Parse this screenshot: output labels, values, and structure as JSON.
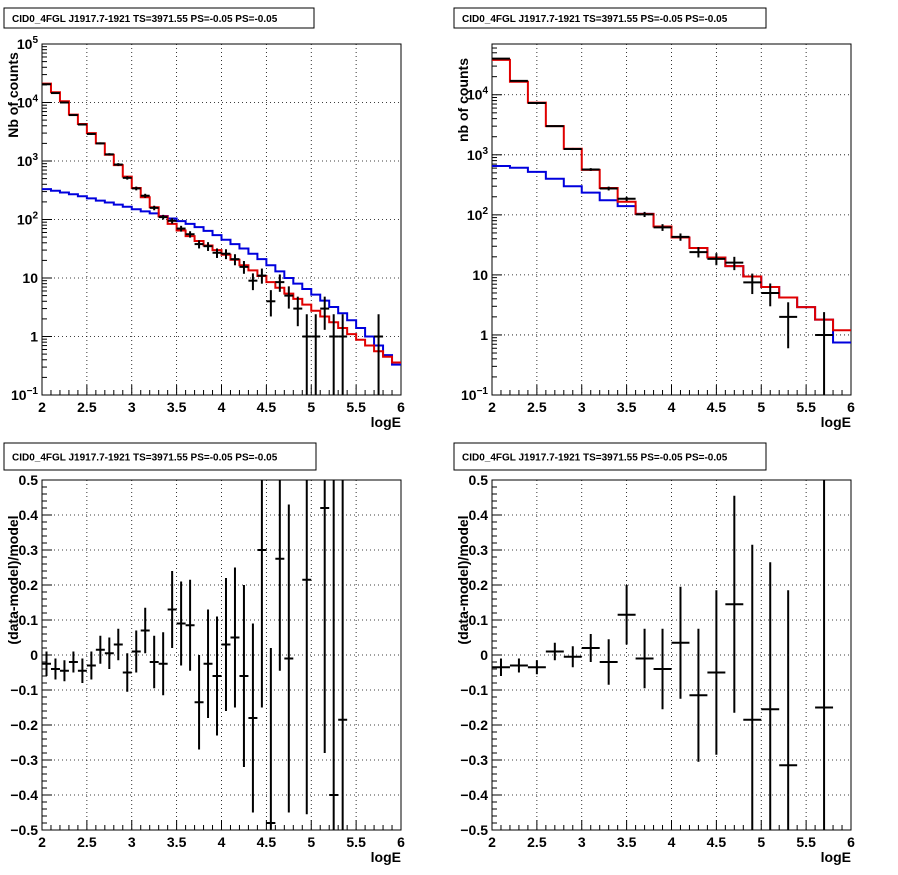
{
  "chart_data": [
    {
      "id": "top-left",
      "type": "histogram",
      "title": "CID0_4FGL J1917.7-1921 TS=3971.55 PS=-0.05 PS=-0.05",
      "xlabel": "logE",
      "ylabel": "Nb of counts",
      "x_ticks": [
        "2",
        "2.5",
        "3",
        "3.5",
        "4",
        "4.5",
        "5",
        "5.5",
        "6"
      ],
      "y_ticks": [
        {
          "value": 0.1,
          "label": "10",
          "sup": "−1"
        },
        {
          "value": 1,
          "label": "1",
          "sup": ""
        },
        {
          "value": 10,
          "label": "10",
          "sup": ""
        },
        {
          "value": 100,
          "label": "10",
          "sup": "2"
        },
        {
          "value": 1000,
          "label": "10",
          "sup": "3"
        },
        {
          "value": 10000,
          "label": "10",
          "sup": "4"
        },
        {
          "value": 100000,
          "label": "10",
          "sup": "5"
        }
      ],
      "xlim": [
        2,
        6
      ],
      "ylim": [
        0.1,
        100000
      ],
      "log_y": true,
      "grid": true,
      "colors": {
        "total_model": "#e00000",
        "source_model": "#0000dd",
        "data": "#000000"
      },
      "bin_edges": [
        2.0,
        2.1,
        2.2,
        2.3,
        2.4,
        2.5,
        2.6,
        2.7,
        2.8,
        2.9,
        3.0,
        3.1,
        3.2,
        3.3,
        3.4,
        3.5,
        3.6,
        3.7,
        3.8,
        3.9,
        4.0,
        4.1,
        4.2,
        4.3,
        4.4,
        4.5,
        4.6,
        4.7,
        4.8,
        4.9,
        5.0,
        5.1,
        5.2,
        5.3,
        5.4,
        5.5,
        5.6,
        5.7,
        5.8,
        5.9,
        6.0
      ],
      "series": [
        {
          "values": [
            21000,
            15000,
            10500,
            6200,
            4300,
            3000,
            2000,
            1280,
            850,
            540,
            345,
            240,
            162,
            113,
            84,
            65,
            52,
            43,
            36,
            30,
            25,
            20.5,
            16.5,
            13.5,
            10.8,
            8.5,
            6.8,
            5.4,
            4.4,
            3.5,
            2.75,
            2.2,
            1.75,
            1.4,
            1.1,
            0.88,
            0.7,
            0.56,
            0.45,
            0.36
          ]
        },
        {
          "values": [
            330,
            310,
            290,
            270,
            250,
            230,
            210,
            195,
            180,
            165,
            150,
            138,
            127,
            115,
            104,
            94,
            84,
            74,
            64,
            54,
            45,
            38,
            32,
            26,
            21,
            16.5,
            13,
            10,
            8,
            6.5,
            5.2,
            4.1,
            3.2,
            2.5,
            1.9,
            1.4,
            1.0,
            0.7,
            0.48,
            0.33
          ]
        }
      ],
      "data_points": [
        {
          "x": 2.05,
          "y": 20500,
          "lo": 20300,
          "hi": 20700
        },
        {
          "x": 2.15,
          "y": 14500,
          "lo": 14300,
          "hi": 14700
        },
        {
          "x": 2.25,
          "y": 10000,
          "lo": 9850,
          "hi": 10150
        },
        {
          "x": 2.35,
          "y": 6100,
          "lo": 5950,
          "hi": 6250
        },
        {
          "x": 2.45,
          "y": 4200,
          "lo": 4080,
          "hi": 4320
        },
        {
          "x": 2.55,
          "y": 2900,
          "lo": 2800,
          "hi": 3000
        },
        {
          "x": 2.65,
          "y": 2000,
          "lo": 1920,
          "hi": 2080
        },
        {
          "x": 2.75,
          "y": 1300,
          "lo": 1240,
          "hi": 1360
        },
        {
          "x": 2.85,
          "y": 870,
          "lo": 820,
          "hi": 920
        },
        {
          "x": 2.95,
          "y": 515,
          "lo": 480,
          "hi": 550
        },
        {
          "x": 3.05,
          "y": 340,
          "lo": 315,
          "hi": 365
        },
        {
          "x": 3.15,
          "y": 255,
          "lo": 235,
          "hi": 275
        },
        {
          "x": 3.25,
          "y": 158,
          "lo": 144,
          "hi": 172
        },
        {
          "x": 3.35,
          "y": 110,
          "lo": 100,
          "hi": 120
        },
        {
          "x": 3.45,
          "y": 95,
          "lo": 85,
          "hi": 105
        },
        {
          "x": 3.55,
          "y": 70,
          "lo": 62,
          "hi": 78
        },
        {
          "x": 3.65,
          "y": 56,
          "lo": 49,
          "hi": 63
        },
        {
          "x": 3.75,
          "y": 38,
          "lo": 32,
          "hi": 44
        },
        {
          "x": 3.85,
          "y": 35,
          "lo": 29,
          "hi": 41
        },
        {
          "x": 3.95,
          "y": 27,
          "lo": 22,
          "hi": 32
        },
        {
          "x": 4.05,
          "y": 26,
          "lo": 21,
          "hi": 31
        },
        {
          "x": 4.15,
          "y": 21,
          "lo": 16.5,
          "hi": 25.5
        },
        {
          "x": 4.25,
          "y": 15.5,
          "lo": 11.8,
          "hi": 19.5
        },
        {
          "x": 4.35,
          "y": 9,
          "lo": 6.2,
          "hi": 12
        },
        {
          "x": 4.45,
          "y": 11,
          "lo": 8,
          "hi": 14.5
        },
        {
          "x": 4.55,
          "y": 4,
          "lo": 2.2,
          "hi": 6.2
        },
        {
          "x": 4.65,
          "y": 8.5,
          "lo": 5.8,
          "hi": 11.5
        },
        {
          "x": 4.75,
          "y": 5,
          "lo": 3,
          "hi": 7.2
        },
        {
          "x": 4.85,
          "y": 3,
          "lo": 1.5,
          "hi": 4.8
        },
        {
          "x": 4.95,
          "y": 1,
          "lo": 0.1,
          "hi": 2.4
        },
        {
          "x": 5.05,
          "y": 1,
          "lo": 0.1,
          "hi": 2.4
        },
        {
          "x": 5.15,
          "y": 3,
          "lo": 1.3,
          "hi": 4.8
        },
        {
          "x": 5.25,
          "y": 1,
          "lo": 0.1,
          "hi": 2.4
        },
        {
          "x": 5.35,
          "y": 1,
          "lo": 0.1,
          "hi": 2.4
        },
        {
          "x": 5.75,
          "y": 1,
          "lo": 0.1,
          "hi": 2.4
        }
      ]
    },
    {
      "id": "top-right",
      "type": "histogram",
      "title": "CID0_4FGL J1917.7-1921 TS=3971.55 PS=-0.05 PS=-0.05",
      "xlabel": "logE",
      "ylabel": "nb of counts",
      "x_ticks": [
        "2",
        "2.5",
        "3",
        "3.5",
        "4",
        "4.5",
        "5",
        "5.5",
        "6"
      ],
      "y_ticks": [
        {
          "value": 0.1,
          "label": "10",
          "sup": "−1"
        },
        {
          "value": 1,
          "label": "1",
          "sup": ""
        },
        {
          "value": 10,
          "label": "10",
          "sup": ""
        },
        {
          "value": 100,
          "label": "10",
          "sup": "2"
        },
        {
          "value": 1000,
          "label": "10",
          "sup": "3"
        },
        {
          "value": 10000,
          "label": "10",
          "sup": "4"
        }
      ],
      "xlim": [
        2,
        6
      ],
      "ylim": [
        0.1,
        70000
      ],
      "log_y": true,
      "grid": true,
      "colors": {
        "total_model": "#e00000",
        "source_model": "#0000dd",
        "data": "#000000"
      },
      "bin_edges": [
        2.0,
        2.2,
        2.4,
        2.6,
        2.8,
        3.0,
        3.2,
        3.4,
        3.6,
        3.8,
        4.0,
        4.2,
        4.4,
        4.6,
        4.8,
        5.0,
        5.2,
        5.4,
        5.6,
        5.8,
        6.0
      ],
      "series": [
        {
          "values": [
            38000,
            16500,
            7400,
            3000,
            1260,
            560,
            280,
            165,
            104,
            64,
            42,
            28,
            19.5,
            14,
            9.4,
            6.3,
            4.2,
            2.9,
            1.8,
            1.2
          ]
        },
        {
          "values": [
            650,
            610,
            520,
            400,
            300,
            235,
            175,
            140,
            104,
            64,
            42,
            28,
            19.5,
            14,
            9.4,
            6.3,
            4.2,
            2.9,
            1.8,
            0.75
          ]
        }
      ],
      "data_points": [
        {
          "x": 2.1,
          "y": 40000,
          "lo": 39700,
          "hi": 40300
        },
        {
          "x": 2.3,
          "y": 17000,
          "lo": 16800,
          "hi": 17200
        },
        {
          "x": 2.5,
          "y": 7300,
          "lo": 7150,
          "hi": 7450
        },
        {
          "x": 2.7,
          "y": 3000,
          "lo": 2920,
          "hi": 3080
        },
        {
          "x": 2.9,
          "y": 1250,
          "lo": 1200,
          "hi": 1300
        },
        {
          "x": 3.1,
          "y": 570,
          "lo": 540,
          "hi": 600
        },
        {
          "x": 3.3,
          "y": 275,
          "lo": 255,
          "hi": 295
        },
        {
          "x": 3.5,
          "y": 185,
          "lo": 170,
          "hi": 200
        },
        {
          "x": 3.7,
          "y": 102,
          "lo": 92,
          "hi": 112
        },
        {
          "x": 3.9,
          "y": 62,
          "lo": 54,
          "hi": 70
        },
        {
          "x": 4.1,
          "y": 43,
          "lo": 37,
          "hi": 49
        },
        {
          "x": 4.3,
          "y": 24,
          "lo": 19.5,
          "hi": 29
        },
        {
          "x": 4.5,
          "y": 18.5,
          "lo": 14.5,
          "hi": 23
        },
        {
          "x": 4.7,
          "y": 16,
          "lo": 12,
          "hi": 20
        },
        {
          "x": 4.9,
          "y": 7.5,
          "lo": 4.8,
          "hi": 10.5
        },
        {
          "x": 5.1,
          "y": 5,
          "lo": 3,
          "hi": 7.2
        },
        {
          "x": 5.3,
          "y": 2,
          "lo": 0.6,
          "hi": 3.5
        },
        {
          "x": 5.7,
          "y": 1,
          "lo": 0.1,
          "hi": 2.4
        }
      ]
    },
    {
      "id": "bottom-left",
      "type": "scatter",
      "title": "CID0_4FGL J1917.7-1921 TS=3971.55 PS=-0.05 PS=-0.05",
      "xlabel": "logE",
      "ylabel": "(data-model)/model",
      "x_ticks": [
        "2",
        "2.5",
        "3",
        "3.5",
        "4",
        "4.5",
        "5",
        "5.5",
        "6"
      ],
      "y_ticks": [
        "−0.5",
        "−0.4",
        "−0.3",
        "−0.2",
        "−0.1",
        "0",
        "0.1",
        "0.2",
        "0.3",
        "0.4",
        "0.5"
      ],
      "xlim": [
        2,
        6
      ],
      "ylim": [
        -0.5,
        0.5
      ],
      "grid": true,
      "bin_halfwidth": 0.05,
      "points": [
        {
          "x": 2.05,
          "y": -0.025,
          "err": 0.035
        },
        {
          "x": 2.15,
          "y": -0.04,
          "err": 0.03
        },
        {
          "x": 2.25,
          "y": -0.045,
          "err": 0.03
        },
        {
          "x": 2.35,
          "y": -0.02,
          "err": 0.03
        },
        {
          "x": 2.45,
          "y": -0.045,
          "err": 0.035
        },
        {
          "x": 2.55,
          "y": -0.03,
          "err": 0.04
        },
        {
          "x": 2.65,
          "y": 0.015,
          "err": 0.04
        },
        {
          "x": 2.75,
          "y": 0.005,
          "err": 0.045
        },
        {
          "x": 2.85,
          "y": 0.03,
          "err": 0.045
        },
        {
          "x": 2.95,
          "y": -0.05,
          "err": 0.055
        },
        {
          "x": 3.05,
          "y": 0.01,
          "err": 0.06
        },
        {
          "x": 3.15,
          "y": 0.07,
          "err": 0.065
        },
        {
          "x": 3.25,
          "y": -0.02,
          "err": 0.075
        },
        {
          "x": 3.35,
          "y": -0.025,
          "err": 0.09
        },
        {
          "x": 3.45,
          "y": 0.13,
          "err": 0.11
        },
        {
          "x": 3.55,
          "y": 0.09,
          "err": 0.12
        },
        {
          "x": 3.65,
          "y": 0.085,
          "err": 0.13
        },
        {
          "x": 3.75,
          "y": -0.135,
          "err": 0.135
        },
        {
          "x": 3.85,
          "y": -0.025,
          "err": 0.155
        },
        {
          "x": 3.95,
          "y": -0.06,
          "err": 0.17
        },
        {
          "x": 4.05,
          "y": 0.03,
          "err": 0.19
        },
        {
          "x": 4.15,
          "y": 0.05,
          "err": 0.2
        },
        {
          "x": 4.25,
          "y": -0.06,
          "err": 0.26
        },
        {
          "x": 4.35,
          "y": -0.18,
          "err": 0.27
        },
        {
          "x": 4.45,
          "y": 0.3,
          "err": 0.45
        },
        {
          "x": 4.55,
          "y": -0.48,
          "err": 0.5
        },
        {
          "x": 4.65,
          "y": 0.275,
          "err": 0.32
        },
        {
          "x": 4.75,
          "y": -0.01,
          "err": 0.44
        },
        {
          "x": 4.95,
          "y": 0.215,
          "err": 0.67
        },
        {
          "x": 5.15,
          "y": 0.42,
          "err": 0.7
        },
        {
          "x": 5.25,
          "y": -0.4,
          "err": 0.9
        },
        {
          "x": 5.35,
          "y": -0.185,
          "err": 0.9
        }
      ]
    },
    {
      "id": "bottom-right",
      "type": "scatter",
      "title": "CID0_4FGL J1917.7-1921 TS=3971.55 PS=-0.05 PS=-0.05",
      "xlabel": "logE",
      "ylabel": "(data-model)/model",
      "x_ticks": [
        "2",
        "2.5",
        "3",
        "3.5",
        "4",
        "4.5",
        "5",
        "5.5",
        "6"
      ],
      "y_ticks": [
        "−0.5",
        "−0.4",
        "−0.3",
        "−0.2",
        "−0.1",
        "0",
        "0.1",
        "0.2",
        "0.3",
        "0.4",
        "0.5"
      ],
      "xlim": [
        2,
        6
      ],
      "ylim": [
        -0.5,
        0.5
      ],
      "grid": true,
      "bin_halfwidth": 0.1,
      "points": [
        {
          "x": 2.1,
          "y": -0.035,
          "err": 0.025
        },
        {
          "x": 2.3,
          "y": -0.03,
          "err": 0.02
        },
        {
          "x": 2.5,
          "y": -0.035,
          "err": 0.02
        },
        {
          "x": 2.7,
          "y": 0.01,
          "err": 0.025
        },
        {
          "x": 2.9,
          "y": -0.005,
          "err": 0.03
        },
        {
          "x": 3.1,
          "y": 0.02,
          "err": 0.04
        },
        {
          "x": 3.3,
          "y": -0.02,
          "err": 0.065
        },
        {
          "x": 3.5,
          "y": 0.115,
          "err": 0.085
        },
        {
          "x": 3.7,
          "y": -0.01,
          "err": 0.085
        },
        {
          "x": 3.9,
          "y": -0.04,
          "err": 0.115
        },
        {
          "x": 4.1,
          "y": 0.035,
          "err": 0.16
        },
        {
          "x": 4.3,
          "y": -0.115,
          "err": 0.19
        },
        {
          "x": 4.5,
          "y": -0.05,
          "err": 0.235
        },
        {
          "x": 4.7,
          "y": 0.145,
          "err": 0.31
        },
        {
          "x": 4.9,
          "y": -0.185,
          "err": 0.5
        },
        {
          "x": 5.1,
          "y": -0.155,
          "err": 0.42
        },
        {
          "x": 5.3,
          "y": -0.315,
          "err": 0.5
        },
        {
          "x": 5.7,
          "y": -0.15,
          "err": 0.7
        }
      ]
    }
  ]
}
